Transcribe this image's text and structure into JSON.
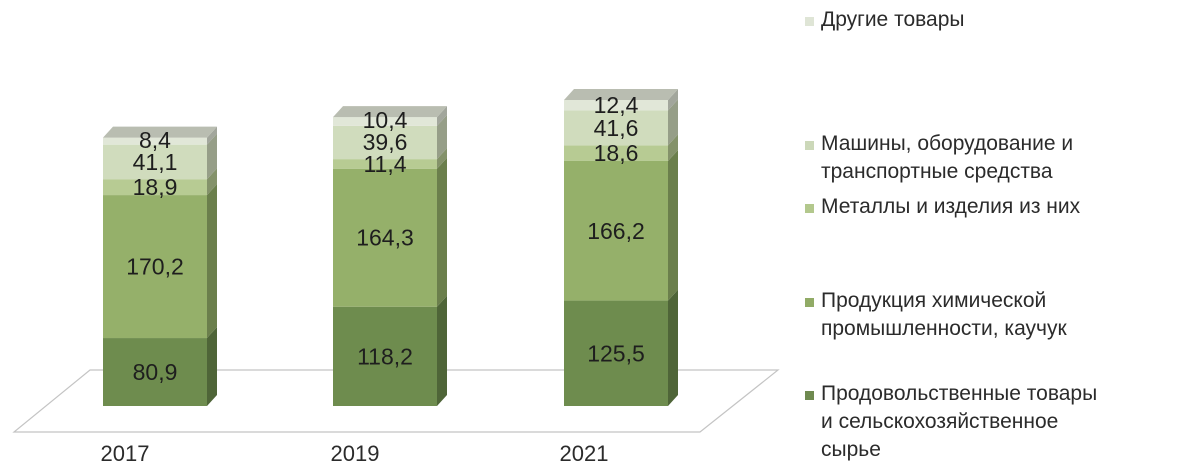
{
  "chart_data": {
    "type": "bar",
    "stacked": true,
    "three_d": true,
    "categories": [
      "2017",
      "2019",
      "2021"
    ],
    "series": [
      {
        "name": "Продовольственные товары и сельскохозяйственное сырье",
        "values": [
          80.9,
          118.2,
          125.5
        ],
        "labels": [
          "80,9",
          "118,2",
          "125,5"
        ],
        "color": "#6e8c4e"
      },
      {
        "name": "Продукция химической промышленности, каучук",
        "values": [
          170.2,
          164.3,
          166.2
        ],
        "labels": [
          "170,2",
          "164,3",
          "166,2"
        ],
        "color": "#95b06a"
      },
      {
        "name": "Металлы и изделия из них",
        "values": [
          18.9,
          11.4,
          18.6
        ],
        "labels": [
          "18,9",
          "11,4",
          "18,6"
        ],
        "color": "#b7cb93"
      },
      {
        "name": "Машины, оборудование и транспортные средства",
        "values": [
          41.1,
          39.6,
          41.6
        ],
        "labels": [
          "41,1",
          "39,6",
          "41,6"
        ],
        "color": "#d0dcbd"
      },
      {
        "name": "Другие товары",
        "values": [
          8.4,
          10.4,
          12.4
        ],
        "labels": [
          "8,4",
          "10,4",
          "12,4"
        ],
        "color": "#e1e7d8"
      }
    ],
    "legend": {
      "position": "right",
      "order": [
        4,
        3,
        2,
        1,
        0
      ],
      "entries": [
        {
          "text": "Другие товары",
          "color": "#dfe5d6"
        },
        {
          "text": "Машины, оборудование и\nтранспортные средства",
          "color": "#ccd8b9"
        },
        {
          "text": "Металлы и изделия из них",
          "color": "#b3c88d"
        },
        {
          "text": "Продукция химической\nпромышленности, каучук",
          "color": "#91ab66"
        },
        {
          "text": "Продовольственные товары\nи сельскохозяйственное\nсырье",
          "color": "#6f8a50"
        }
      ]
    },
    "title": "",
    "xlabel": "",
    "ylabel": "",
    "grid": false
  }
}
